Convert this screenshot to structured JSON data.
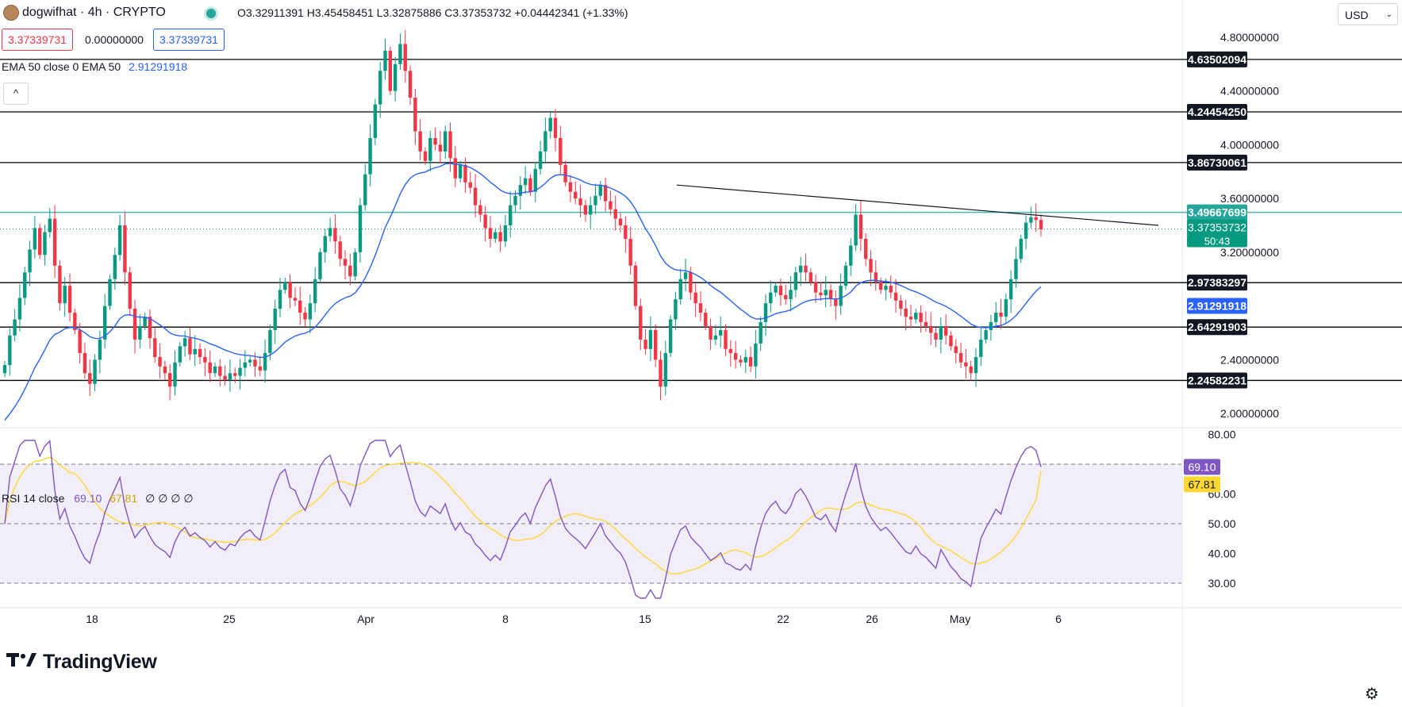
{
  "header": {
    "symbol": "dogwifhat",
    "interval": "4h",
    "exchange": "CRYPTO",
    "title_line": "dogwifhat · 4h · CRYPTO",
    "ohlc_line": "O3.32911391 H3.45458451 L3.32875886 C3.37353732 +0.04442341 (+1.33%)",
    "sell_price": "3.37339731",
    "spread": "0.00000000",
    "buy_price": "3.37339731"
  },
  "indicators": {
    "ema_label": "EMA 50 close 0 EMA 50",
    "ema_value": "2.91291918",
    "rsi_label": "RSI 14 close",
    "rsi_value": "69.10",
    "rsi_ma_value": "67.81",
    "rsi_extras": "∅ ∅ ∅ ∅"
  },
  "controls": {
    "collapse_symbol": "^",
    "currency": "USD",
    "brand": "TradingView"
  },
  "price_axis": {
    "ticks": [
      "4.80000000",
      "4.40000000",
      "4.00000000",
      "3.60000000",
      "3.20000000",
      "2.40000000",
      "2.00000000"
    ]
  },
  "price_labels": [
    {
      "text": "4.63502094",
      "kind": "level"
    },
    {
      "text": "4.24454250",
      "kind": "level"
    },
    {
      "text": "3.86730061",
      "kind": "level"
    },
    {
      "text": "3.49667699",
      "kind": "teal"
    },
    {
      "text": "3.37353732",
      "kind": "last"
    },
    {
      "text": "50:43",
      "kind": "timer"
    },
    {
      "text": "2.97383297",
      "kind": "level"
    },
    {
      "text": "2.91291918",
      "kind": "ema"
    },
    {
      "text": "2.64291903",
      "kind": "level"
    },
    {
      "text": "2.24582231",
      "kind": "level"
    }
  ],
  "rsi_axis": {
    "ticks": [
      "80.00",
      "60.00",
      "50.00",
      "40.00",
      "30.00"
    ],
    "labels": [
      {
        "text": "69.10",
        "kind": "rsi"
      },
      {
        "text": "67.81",
        "kind": "rsima"
      }
    ]
  },
  "time_axis": {
    "ticks": [
      "18",
      "25",
      "Apr",
      "8",
      "15",
      "22",
      "26",
      "May",
      "6"
    ]
  },
  "colors": {
    "up": "#089981",
    "down": "#f23645",
    "ema": "#2962ff",
    "rsi": "#7e57c2",
    "rsi_ma": "#fdd835",
    "teal_level": "#4db6ac",
    "level": "#000000"
  },
  "chart_data": [
    {
      "type": "candlestick",
      "series": [
        {
          "name": "EMA 50",
          "last": 2.91291918
        }
      ],
      "ylim": [
        1.9,
        4.9
      ],
      "horizontal_levels": [
        4.63502094,
        4.2445425,
        3.86730061,
        3.49667699,
        2.97383297,
        2.64291903,
        2.24582231
      ],
      "trendline": {
        "from": {
          "x": "Apr 15",
          "y": 3.7
        },
        "to": {
          "x": "May 7",
          "y": 3.4
        }
      },
      "last_close": 3.37353732,
      "approx_closes": [
        2.36,
        2.58,
        2.7,
        2.86,
        3.05,
        3.22,
        3.38,
        3.18,
        3.35,
        3.45,
        3.1,
        2.82,
        2.95,
        2.75,
        2.62,
        2.45,
        2.3,
        2.22,
        2.4,
        2.55,
        2.8,
        3.0,
        3.18,
        3.4,
        3.05,
        2.78,
        2.55,
        2.65,
        2.72,
        2.56,
        2.42,
        2.35,
        2.3,
        2.2,
        2.38,
        2.5,
        2.56,
        2.44,
        2.48,
        2.42,
        2.38,
        2.3,
        2.35,
        2.28,
        2.25,
        2.3,
        2.28,
        2.34,
        2.38,
        2.4,
        2.35,
        2.32,
        2.45,
        2.62,
        2.78,
        2.92,
        2.98,
        2.86,
        2.84,
        2.75,
        2.7,
        2.82,
        3.0,
        3.2,
        3.32,
        3.38,
        3.28,
        3.15,
        3.1,
        3.02,
        3.2,
        3.55,
        3.78,
        4.05,
        4.3,
        4.55,
        4.7,
        4.4,
        4.6,
        4.75,
        4.55,
        4.35,
        4.1,
        3.95,
        3.88,
        4.05,
        4.0,
        3.95,
        4.1,
        3.9,
        3.75,
        3.85,
        3.72,
        3.68,
        3.55,
        3.48,
        3.38,
        3.3,
        3.35,
        3.28,
        3.4,
        3.55,
        3.62,
        3.7,
        3.75,
        3.65,
        3.82,
        3.95,
        4.1,
        4.2,
        4.05,
        3.85,
        3.72,
        3.65,
        3.6,
        3.55,
        3.48,
        3.55,
        3.62,
        3.7,
        3.58,
        3.52,
        3.45,
        3.4,
        3.3,
        3.1,
        2.8,
        2.55,
        2.48,
        2.62,
        2.4,
        2.2,
        2.45,
        2.7,
        2.85,
        3.0,
        3.05,
        2.9,
        2.82,
        2.75,
        2.65,
        2.55,
        2.58,
        2.62,
        2.48,
        2.45,
        2.4,
        2.38,
        2.42,
        2.35,
        2.52,
        2.68,
        2.82,
        2.9,
        2.95,
        2.88,
        2.85,
        2.92,
        3.05,
        3.1,
        3.05,
        2.98,
        2.9,
        2.88,
        2.92,
        2.85,
        2.8,
        2.95,
        3.1,
        3.25,
        3.48,
        3.3,
        3.15,
        3.05,
        2.98,
        2.92,
        2.95,
        2.9,
        2.84,
        2.78,
        2.72,
        2.7,
        2.75,
        2.68,
        2.65,
        2.6,
        2.55,
        2.65,
        2.58,
        2.5,
        2.45,
        2.38,
        2.35,
        2.3,
        2.42,
        2.55,
        2.62,
        2.68,
        2.75,
        2.72,
        2.85,
        3.0,
        3.15,
        3.3,
        3.42,
        3.46,
        3.44,
        3.37
      ]
    },
    {
      "type": "line",
      "series": [
        {
          "name": "RSI 14 close",
          "last": 69.1
        },
        {
          "name": "MA",
          "last": 67.81
        }
      ],
      "ylim": [
        22,
        82
      ],
      "bands": {
        "upper": 70,
        "middle": 50,
        "lower": 30
      }
    }
  ]
}
